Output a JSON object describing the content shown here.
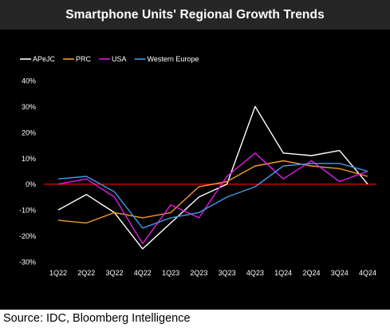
{
  "title": "Smartphone Units' Regional Growth Trends",
  "source": "Source: IDC, Bloomberg Intelligence",
  "chart_data": {
    "type": "line",
    "title": "Smartphone Units' Regional Growth Trends",
    "xlabel": "",
    "ylabel": "",
    "categories": [
      "1Q22",
      "2Q22",
      "3Q22",
      "4Q22",
      "1Q23",
      "2Q23",
      "3Q23",
      "4Q23",
      "1Q24",
      "2Q24",
      "3Q24",
      "4Q24"
    ],
    "ylim": [
      -30,
      40
    ],
    "yticks": [
      -30,
      -20,
      -10,
      0,
      10,
      20,
      30,
      40
    ],
    "ytick_labels": [
      "-30%",
      "-20%",
      "-10%",
      "0%",
      "10%",
      "20%",
      "30%",
      "40%"
    ],
    "grid": false,
    "legend_position": "top-left",
    "zero_line_color": "#cc0000",
    "series": [
      {
        "name": "APeJC",
        "color": "#ffffff",
        "values": [
          -10,
          -4,
          -11,
          -25,
          -15,
          -5,
          0,
          30,
          12,
          11,
          13,
          0
        ]
      },
      {
        "name": "PRC",
        "color": "#f59a23",
        "values": [
          -14,
          -15,
          -11,
          -13,
          -11,
          -1,
          1,
          7,
          9,
          7,
          6,
          3
        ]
      },
      {
        "name": "USA",
        "color": "#e619e6",
        "values": [
          0,
          2,
          -5,
          -23,
          -8,
          -13,
          3,
          12,
          2,
          9,
          1,
          5
        ]
      },
      {
        "name": "Western Europe",
        "color": "#3f9be8",
        "values": [
          2,
          3,
          -3,
          -17,
          -13,
          -11,
          -5,
          -1,
          7,
          8,
          8,
          5
        ]
      }
    ]
  }
}
